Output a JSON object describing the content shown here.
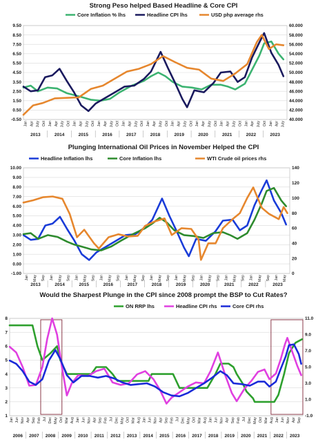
{
  "chart_data": [
    {
      "type": "line",
      "title": "Strong Peso helped Based Headline & Core CPI",
      "left_ticks": [
        "9.50",
        "8.50",
        "7.50",
        "6.50",
        "5.50",
        "4.50",
        "3.50",
        "2.50",
        "1.50",
        "0.50",
        "-0.50"
      ],
      "right_ticks": [
        "60.000",
        "58.000",
        "56.000",
        "54.000",
        "52.000",
        "50.000",
        "48.000",
        "46.000",
        "44.000",
        "42.000",
        "40.000"
      ],
      "ylim_left": [
        -0.5,
        9.5
      ],
      "ylim_right": [
        40,
        60
      ],
      "grid": true,
      "month_labels": [
        "Jan",
        "Apr",
        "July",
        "Oct"
      ],
      "years": [
        "2013",
        "2014",
        "2015",
        "2016",
        "2017",
        "2018",
        "2019",
        "2020",
        "2021",
        "2022",
        "2023"
      ],
      "x_start": 2013.0,
      "x_end": 2023.95,
      "series": [
        {
          "name": "Core Inflation % lhs",
          "color": "#3cb371",
          "axis": "left",
          "x": [
            2013,
            2013.3,
            2013.6,
            2014,
            2014.4,
            2014.8,
            2015.1,
            2015.4,
            2015.8,
            2016.2,
            2016.6,
            2017,
            2017.5,
            2018,
            2018.3,
            2018.6,
            2018.9,
            2019.2,
            2019.6,
            2020,
            2020.4,
            2020.8,
            2021.2,
            2021.5,
            2021.8,
            2022.2,
            2022.5,
            2022.8,
            2023,
            2023.3,
            2023.6,
            2023.8
          ],
          "y": [
            2.9,
            3.1,
            2.5,
            2.9,
            2.8,
            2.3,
            2.1,
            1.9,
            1.6,
            1.5,
            1.7,
            2.4,
            3.1,
            3.6,
            4.1,
            4.5,
            4.1,
            3.5,
            3.0,
            2.9,
            2.7,
            3.2,
            3.2,
            3.0,
            2.7,
            3.3,
            4.8,
            6.3,
            7.6,
            7.8,
            6.5,
            5.9
          ]
        },
        {
          "name": "Headline CPI lhs",
          "color": "#1a1a5e",
          "axis": "left",
          "x": [
            2013,
            2013.3,
            2013.6,
            2013.9,
            2014.2,
            2014.5,
            2014.8,
            2015.1,
            2015.4,
            2015.7,
            2016,
            2016.4,
            2016.8,
            2017.2,
            2017.6,
            2018,
            2018.3,
            2018.7,
            2019,
            2019.3,
            2019.6,
            2019.8,
            2020.1,
            2020.5,
            2020.9,
            2021.2,
            2021.6,
            2021.9,
            2022.2,
            2022.5,
            2022.8,
            2023,
            2023.3,
            2023.6,
            2023.8
          ],
          "y": [
            3.0,
            2.5,
            2.6,
            4.0,
            4.2,
            4.9,
            3.6,
            2.4,
            1.0,
            0.4,
            1.2,
            1.8,
            2.4,
            3.0,
            3.1,
            3.8,
            4.6,
            6.7,
            5.0,
            3.4,
            1.7,
            0.8,
            2.6,
            2.4,
            3.4,
            4.5,
            4.6,
            3.5,
            4.0,
            6.1,
            7.7,
            8.7,
            6.6,
            5.3,
            4.1
          ]
        },
        {
          "name": "USD php average rhs",
          "color": "#e6872e",
          "axis": "right",
          "x": [
            2013,
            2013.4,
            2013.8,
            2014.3,
            2014.8,
            2015.3,
            2015.8,
            2016.3,
            2016.8,
            2017.3,
            2017.8,
            2018.3,
            2018.8,
            2019.3,
            2019.8,
            2020.3,
            2020.8,
            2021.3,
            2021.8,
            2022.3,
            2022.7,
            2022.9,
            2023.2,
            2023.5,
            2023.8
          ],
          "y": [
            41.0,
            43.0,
            43.5,
            44.5,
            44.6,
            44.7,
            46.5,
            47.2,
            48.7,
            50.2,
            50.8,
            51.8,
            53.5,
            52.2,
            51.0,
            50.6,
            48.7,
            48.2,
            49.8,
            51.8,
            56.5,
            58.0,
            55.0,
            56.0,
            55.8
          ]
        }
      ]
    },
    {
      "type": "line",
      "title": "Plunging International Oil Prices in November Helped the CPI",
      "left_ticks": [
        "10.00",
        "9.00",
        "8.00",
        "7.00",
        "6.00",
        "5.00",
        "4.00",
        "3.00",
        "2.00",
        "1.00",
        "0.00",
        "-1.00"
      ],
      "right_ticks": [
        "140",
        "120",
        "100",
        "80",
        "60",
        "40",
        "20",
        "0"
      ],
      "ylim_left": [
        -1,
        10
      ],
      "ylim_right": [
        0,
        140
      ],
      "grid": true,
      "month_labels": [
        "Jan",
        "May",
        "Sep"
      ],
      "years": [
        "2013",
        "2014",
        "2015",
        "2016",
        "2017",
        "2018",
        "2019",
        "2020",
        "2021",
        "2022",
        "2023"
      ],
      "x_start": 2013.0,
      "x_end": 2023.95,
      "series": [
        {
          "name": "Headline Inflation lhs",
          "color": "#1a3cd8",
          "axis": "left",
          "x": [
            2013,
            2013.3,
            2013.6,
            2013.9,
            2014.2,
            2014.5,
            2014.8,
            2015.1,
            2015.4,
            2015.7,
            2016,
            2016.4,
            2016.8,
            2017.2,
            2017.6,
            2018,
            2018.3,
            2018.7,
            2019,
            2019.3,
            2019.6,
            2019.8,
            2020.1,
            2020.5,
            2020.9,
            2021.2,
            2021.6,
            2021.9,
            2022.2,
            2022.5,
            2022.8,
            2023,
            2023.3,
            2023.6,
            2023.8
          ],
          "y": [
            3.0,
            2.5,
            2.6,
            4.0,
            4.2,
            4.9,
            3.6,
            2.4,
            1.0,
            0.4,
            1.2,
            1.8,
            2.4,
            3.0,
            3.1,
            3.8,
            4.6,
            6.8,
            5.0,
            3.4,
            1.7,
            0.8,
            2.6,
            2.4,
            3.4,
            4.5,
            4.6,
            3.5,
            4.0,
            6.1,
            7.7,
            8.7,
            6.6,
            5.3,
            4.1
          ]
        },
        {
          "name": "Core Inflation lhs",
          "color": "#2e8b2e",
          "axis": "left",
          "x": [
            2013,
            2013.3,
            2013.6,
            2014,
            2014.4,
            2014.8,
            2015.1,
            2015.4,
            2015.8,
            2016.2,
            2016.6,
            2017,
            2017.5,
            2018,
            2018.3,
            2018.6,
            2018.9,
            2019.2,
            2019.6,
            2020,
            2020.4,
            2020.8,
            2021.2,
            2021.5,
            2021.8,
            2022.2,
            2022.5,
            2022.8,
            2023,
            2023.3,
            2023.6,
            2023.8
          ],
          "y": [
            3.1,
            3.2,
            2.6,
            3.0,
            2.8,
            2.3,
            2.0,
            1.8,
            1.5,
            1.4,
            1.8,
            2.4,
            3.1,
            3.7,
            4.2,
            4.8,
            4.3,
            3.5,
            3.0,
            2.9,
            2.7,
            3.2,
            3.3,
            3.0,
            2.6,
            3.2,
            4.6,
            6.3,
            7.6,
            7.9,
            6.6,
            6.0
          ]
        },
        {
          "name": "WTI Crude oil prices rhs",
          "color": "#e6872e",
          "axis": "right",
          "x": [
            2013,
            2013.4,
            2013.8,
            2014.2,
            2014.6,
            2014.9,
            2015.2,
            2015.5,
            2015.9,
            2016.1,
            2016.5,
            2016.9,
            2017.3,
            2017.7,
            2018,
            2018.4,
            2018.8,
            2019.1,
            2019.5,
            2019.9,
            2020.2,
            2020.3,
            2020.6,
            2020.9,
            2021.2,
            2021.6,
            2021.9,
            2022.2,
            2022.45,
            2022.8,
            2023.1,
            2023.5,
            2023.7,
            2023.85
          ],
          "y": [
            94,
            97,
            101,
            102,
            99,
            79,
            48,
            58,
            40,
            33,
            48,
            52,
            49,
            50,
            63,
            69,
            73,
            51,
            60,
            59,
            45,
            18,
            40,
            40,
            60,
            72,
            80,
            100,
            114,
            87,
            79,
            72,
            88,
            80
          ]
        }
      ]
    },
    {
      "type": "line",
      "title": "Would the Sharpest Plunge in the CPI since 2008 prompt the BSP to Cut Rates?",
      "left_ticks": [
        "8",
        "7",
        "6",
        "5",
        "4",
        "3",
        "2",
        "1"
      ],
      "right_ticks": [
        "11.0",
        "9.0",
        "7.0",
        "5.0",
        "3.0",
        "1.0",
        "-1.0"
      ],
      "ylim_left": [
        1,
        8
      ],
      "ylim_right": [
        -1,
        11
      ],
      "grid": true,
      "month_labels": [
        "Jan",
        "Jun",
        "Nov",
        "Apr",
        "Sep",
        "Feb",
        "Jul",
        "Dec",
        "May",
        "Oct",
        "Mar",
        "Aug"
      ],
      "years": [
        "2006",
        "2007",
        "2008",
        "2009",
        "2010",
        "2011",
        "2012",
        "2013",
        "2014",
        "2015",
        "2016",
        "2017",
        "2018",
        "2019",
        "2020",
        "2021",
        "2022",
        "2023"
      ],
      "x_start": 2006.0,
      "x_end": 2023.95,
      "series": [
        {
          "name": "ON RRP lhs",
          "color": "#2ea02e",
          "axis": "left",
          "x": [
            2006,
            2007.4,
            2007.7,
            2008.0,
            2008.5,
            2008.9,
            2009.1,
            2009.5,
            2010,
            2011.0,
            2011.3,
            2011.9,
            2012.3,
            2012.6,
            2013,
            2014.5,
            2014.7,
            2016.0,
            2016.4,
            2017.0,
            2018.1,
            2018.6,
            2018.9,
            2019.4,
            2019.7,
            2019.9,
            2020.3,
            2020.5,
            2020.9,
            2021.0,
            2022.2,
            2022.45,
            2022.8,
            2023.1,
            2023.5,
            2023.9
          ],
          "y": [
            7.5,
            7.5,
            6.0,
            5.0,
            5.5,
            6.0,
            5.0,
            4.0,
            4.0,
            4.0,
            4.5,
            4.5,
            4.0,
            3.5,
            3.5,
            3.5,
            4.0,
            4.0,
            3.0,
            3.0,
            3.0,
            4.0,
            4.75,
            4.75,
            4.5,
            4.0,
            3.25,
            2.75,
            2.25,
            2.0,
            2.0,
            2.5,
            4.0,
            5.5,
            6.25,
            6.5
          ]
        },
        {
          "name": "Headline CPI rhs",
          "color": "#e040e0",
          "axis": "right",
          "x": [
            2006,
            2006.4,
            2006.8,
            2007.2,
            2007.6,
            2008.0,
            2008.3,
            2008.6,
            2008.9,
            2009.2,
            2009.5,
            2009.8,
            2010.2,
            2010.8,
            2011.3,
            2011.8,
            2012.3,
            2012.8,
            2013.3,
            2013.8,
            2014.3,
            2014.8,
            2015.2,
            2015.6,
            2015.9,
            2016.4,
            2016.9,
            2017.4,
            2017.9,
            2018.3,
            2018.75,
            2019.2,
            2019.6,
            2019.9,
            2020.4,
            2020.8,
            2021.2,
            2021.6,
            2021.9,
            2022.3,
            2022.6,
            2022.85,
            2023.0,
            2023.3,
            2023.6,
            2023.85
          ],
          "y": [
            7.5,
            6.8,
            5.0,
            2.7,
            2.8,
            5.0,
            8.5,
            11.0,
            9.0,
            5.0,
            1.5,
            3.0,
            4.0,
            3.9,
            4.5,
            4.8,
            3.1,
            2.8,
            3.0,
            4.1,
            4.5,
            3.5,
            2.2,
            0.5,
            1.2,
            1.9,
            2.6,
            3.1,
            3.0,
            4.5,
            6.8,
            4.0,
            1.8,
            0.8,
            2.4,
            3.3,
            4.4,
            4.7,
            3.5,
            4.2,
            6.0,
            7.8,
            8.6,
            6.9,
            5.2,
            4.0
          ]
        },
        {
          "name": "Core CPI rhs",
          "color": "#1a2ad8",
          "axis": "right",
          "x": [
            2006,
            2006.4,
            2006.8,
            2007.2,
            2007.6,
            2008.0,
            2008.4,
            2008.8,
            2009.1,
            2009.5,
            2009.9,
            2010.4,
            2010.9,
            2011.4,
            2011.9,
            2012.4,
            2012.9,
            2013.4,
            2013.9,
            2014.4,
            2014.9,
            2015.4,
            2015.9,
            2016.4,
            2016.9,
            2017.4,
            2017.9,
            2018.4,
            2018.9,
            2019.3,
            2019.7,
            2020.2,
            2020.7,
            2021.2,
            2021.6,
            2021.9,
            2022.3,
            2022.6,
            2022.9,
            2023.1,
            2023.4,
            2023.7,
            2023.85
          ],
          "y": [
            5.8,
            5.4,
            4.5,
            3.2,
            2.8,
            3.5,
            5.8,
            7.1,
            6.0,
            4.0,
            3.1,
            3.9,
            3.9,
            3.7,
            3.9,
            3.6,
            3.1,
            2.8,
            2.9,
            3.0,
            2.6,
            1.9,
            1.5,
            1.4,
            1.8,
            2.4,
            3.0,
            3.7,
            4.5,
            4.0,
            3.0,
            2.9,
            2.7,
            3.2,
            3.2,
            2.6,
            3.2,
            4.8,
            6.3,
            7.7,
            7.8,
            6.6,
            5.4
          ]
        }
      ],
      "highlight_boxes": [
        [
          2007.9,
          2009.2
        ],
        [
          2022.0,
          2023.95
        ]
      ]
    }
  ]
}
